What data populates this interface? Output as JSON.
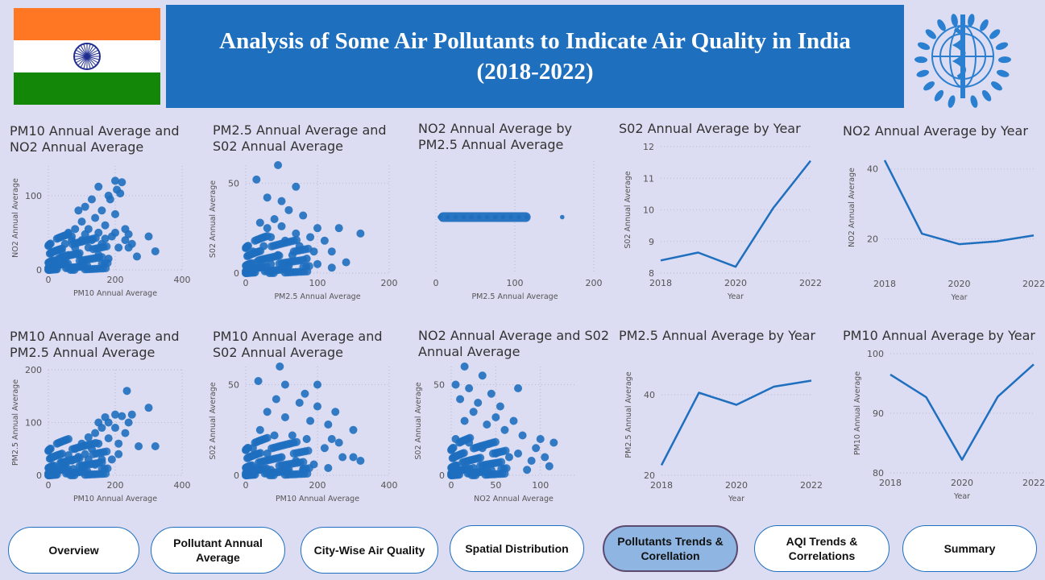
{
  "header": {
    "title_line1": "Analysis of Some Air Pollutants to Indicate Air Quality in India",
    "title_line2": "(2018-2022)",
    "flag_colors": [
      "#ff7722",
      "#ffffff",
      "#138808",
      "#1f2e8f"
    ]
  },
  "colors": {
    "accent": "#1f6fbf",
    "background": "#dcdcf2",
    "active_button": "#8fb6e3"
  },
  "charts": [
    {
      "id": "c1",
      "title_lines": [
        "PM10 Annual Average and",
        "NO2 Annual Average"
      ],
      "xlabel": "PM10 Annual Average",
      "ylabel": "NO2 Annual Average"
    },
    {
      "id": "c2",
      "title_lines": [
        "PM2.5 Annual Average and",
        "S02 Annual Average"
      ],
      "xlabel": "PM2.5 Annual Average",
      "ylabel": "S02 Annual Average"
    },
    {
      "id": "c3",
      "title_lines": [
        "NO2 Annual Average by",
        "PM2.5 Annual Average"
      ],
      "xlabel": "PM2.5 Annual Average",
      "ylabel": ""
    },
    {
      "id": "c4",
      "title_lines": [
        "S02 Annual Average by Year"
      ],
      "xlabel": "Year",
      "ylabel": "S02 Annual Average"
    },
    {
      "id": "c5",
      "title_lines": [
        "NO2 Annual Average by Year"
      ],
      "xlabel": "Year",
      "ylabel": "NO2 Annual Average"
    },
    {
      "id": "c6",
      "title_lines": [
        "PM10 Annual Average and",
        "PM2.5 Annual Average"
      ],
      "xlabel": "PM10 Annual Average",
      "ylabel": "PM2.5 Annual Average"
    },
    {
      "id": "c7",
      "title_lines": [
        "PM10 Annual Average and",
        "S02 Annual Average"
      ],
      "xlabel": "PM10 Annual Average",
      "ylabel": "S02 Annual Average"
    },
    {
      "id": "c8",
      "title_lines": [
        "NO2 Annual Average and S02",
        "Annual Average"
      ],
      "xlabel": "NO2 Annual Average",
      "ylabel": "S02 Annual Average"
    },
    {
      "id": "c9",
      "title_lines": [
        "PM2.5 Annual Average by Year"
      ],
      "xlabel": "Year",
      "ylabel": "PM2.5 Annual Average"
    },
    {
      "id": "c10",
      "title_lines": [
        "PM10 Annual Average by Year"
      ],
      "xlabel": "Year",
      "ylabel": "PM10 Annual Average"
    }
  ],
  "chart_data": [
    {
      "id": "c1",
      "type": "scatter",
      "xlabel": "PM10 Annual Average",
      "ylabel": "NO2 Annual Average",
      "xlim": [
        0,
        400
      ],
      "ylim": [
        0,
        140
      ],
      "xticks": [
        0,
        200,
        400
      ],
      "yticks": [
        0,
        100
      ],
      "points": [
        [
          300,
          45
        ],
        [
          320,
          25
        ],
        [
          240,
          30
        ],
        [
          265,
          18
        ],
        [
          200,
          120
        ],
        [
          220,
          118
        ],
        [
          205,
          108
        ],
        [
          150,
          112
        ],
        [
          180,
          100
        ],
        [
          215,
          103
        ],
        [
          185,
          95
        ],
        [
          130,
          95
        ],
        [
          110,
          85
        ],
        [
          90,
          80
        ],
        [
          160,
          80
        ],
        [
          200,
          75
        ],
        [
          140,
          70
        ],
        [
          100,
          65
        ],
        [
          170,
          60
        ],
        [
          120,
          55
        ],
        [
          80,
          55
        ],
        [
          60,
          50
        ],
        [
          150,
          50
        ],
        [
          200,
          50
        ],
        [
          230,
          55
        ],
        [
          240,
          48
        ],
        [
          190,
          45
        ],
        [
          130,
          40
        ],
        [
          100,
          40
        ],
        [
          70,
          40
        ],
        [
          50,
          35
        ],
        [
          160,
          35
        ],
        [
          210,
          30
        ],
        [
          120,
          30
        ],
        [
          80,
          30
        ],
        [
          40,
          25
        ],
        [
          60,
          20
        ],
        [
          90,
          20
        ],
        [
          150,
          20
        ],
        [
          30,
          15
        ],
        [
          20,
          10
        ],
        [
          50,
          10
        ],
        [
          100,
          10
        ],
        [
          180,
          15
        ],
        [
          70,
          45
        ],
        [
          110,
          48
        ],
        [
          170,
          42
        ],
        [
          230,
          40
        ],
        [
          250,
          35
        ]
      ]
    },
    {
      "id": "c2",
      "type": "scatter",
      "xlabel": "PM2.5 Annual Average",
      "ylabel": "S02 Annual Average",
      "xlim": [
        0,
        200
      ],
      "ylim": [
        0,
        60
      ],
      "xticks": [
        0,
        100,
        200
      ],
      "yticks": [
        0,
        50
      ],
      "points": [
        [
          45,
          60
        ],
        [
          15,
          52
        ],
        [
          70,
          48
        ],
        [
          30,
          42
        ],
        [
          50,
          40
        ],
        [
          60,
          35
        ],
        [
          40,
          30
        ],
        [
          80,
          32
        ],
        [
          20,
          28
        ],
        [
          100,
          25
        ],
        [
          130,
          25
        ],
        [
          160,
          22
        ],
        [
          90,
          20
        ],
        [
          110,
          18
        ],
        [
          35,
          20
        ],
        [
          55,
          18
        ],
        [
          25,
          15
        ],
        [
          75,
          15
        ],
        [
          120,
          12
        ],
        [
          10,
          12
        ],
        [
          45,
          10
        ],
        [
          65,
          10
        ],
        [
          85,
          8
        ],
        [
          15,
          6
        ],
        [
          35,
          5
        ],
        [
          60,
          4
        ],
        [
          100,
          5
        ],
        [
          5,
          3
        ],
        [
          120,
          3
        ],
        [
          140,
          6
        ],
        [
          30,
          25
        ],
        [
          70,
          22
        ],
        [
          50,
          26
        ],
        [
          95,
          12
        ]
      ]
    },
    {
      "id": "c3",
      "type": "scatter",
      "xlabel": "PM2.5 Annual Average",
      "ylabel": "",
      "xlim": [
        0,
        200
      ],
      "xticks": [
        0,
        100,
        200
      ],
      "points": [
        [
          5,
          30
        ],
        [
          15,
          30
        ],
        [
          25,
          30
        ],
        [
          35,
          30
        ],
        [
          45,
          30
        ],
        [
          55,
          30
        ],
        [
          65,
          30
        ],
        [
          75,
          30
        ],
        [
          85,
          30
        ],
        [
          95,
          30
        ],
        [
          105,
          30
        ],
        [
          115,
          30
        ],
        [
          160,
          30
        ]
      ]
    },
    {
      "id": "c4",
      "type": "line",
      "xlabel": "Year",
      "ylabel": "S02 Annual Average",
      "x": [
        2018,
        2019,
        2020,
        2021,
        2022
      ],
      "values": [
        8.4,
        8.65,
        8.2,
        10.05,
        11.55
      ],
      "ylim": [
        8,
        12
      ],
      "yticks": [
        8,
        9,
        10,
        11,
        12
      ],
      "xticks": [
        2018,
        2020,
        2022
      ]
    },
    {
      "id": "c5",
      "type": "line",
      "xlabel": "Year",
      "ylabel": "NO2 Annual Average",
      "x": [
        2018,
        2019,
        2020,
        2021,
        2022
      ],
      "values": [
        42.5,
        21.5,
        18.5,
        19.3,
        21
      ],
      "ylim": [
        10,
        48
      ],
      "yticks": [
        20,
        40
      ],
      "xticks": [
        2018,
        2020,
        2022
      ]
    },
    {
      "id": "c6",
      "type": "scatter",
      "xlabel": "PM10 Annual Average",
      "ylabel": "PM2.5 Annual Average",
      "xlim": [
        0,
        400
      ],
      "ylim": [
        0,
        200
      ],
      "xticks": [
        0,
        200,
        400
      ],
      "yticks": [
        0,
        100,
        200
      ],
      "points": [
        [
          235,
          160
        ],
        [
          300,
          128
        ],
        [
          320,
          55
        ],
        [
          270,
          55
        ],
        [
          200,
          115
        ],
        [
          220,
          112
        ],
        [
          180,
          100
        ],
        [
          160,
          90
        ],
        [
          140,
          80
        ],
        [
          120,
          72
        ],
        [
          100,
          60
        ],
        [
          80,
          50
        ],
        [
          60,
          38
        ],
        [
          40,
          25
        ],
        [
          30,
          15
        ],
        [
          20,
          10
        ],
        [
          200,
          90
        ],
        [
          230,
          80
        ],
        [
          180,
          70
        ],
        [
          150,
          60
        ],
        [
          130,
          50
        ],
        [
          110,
          40
        ],
        [
          90,
          35
        ],
        [
          70,
          28
        ],
        [
          50,
          20
        ],
        [
          190,
          30
        ],
        [
          210,
          40
        ],
        [
          160,
          30
        ],
        [
          140,
          20
        ],
        [
          100,
          15
        ],
        [
          240,
          100
        ],
        [
          250,
          115
        ],
        [
          170,
          110
        ],
        [
          150,
          100
        ],
        [
          210,
          60
        ],
        [
          75,
          12
        ],
        [
          120,
          30
        ]
      ]
    },
    {
      "id": "c7",
      "type": "scatter",
      "xlabel": "PM10 Annual Average",
      "ylabel": "S02 Annual Average",
      "xlim": [
        0,
        400
      ],
      "ylim": [
        0,
        60
      ],
      "xticks": [
        0,
        200,
        400
      ],
      "yticks": [
        0,
        50
      ],
      "points": [
        [
          95,
          60
        ],
        [
          35,
          52
        ],
        [
          110,
          50
        ],
        [
          200,
          50
        ],
        [
          165,
          45
        ],
        [
          85,
          42
        ],
        [
          150,
          40
        ],
        [
          250,
          35
        ],
        [
          200,
          38
        ],
        [
          60,
          35
        ],
        [
          110,
          32
        ],
        [
          180,
          30
        ],
        [
          230,
          28
        ],
        [
          300,
          25
        ],
        [
          40,
          25
        ],
        [
          80,
          22
        ],
        [
          130,
          22
        ],
        [
          170,
          20
        ],
        [
          260,
          18
        ],
        [
          220,
          15
        ],
        [
          300,
          10
        ],
        [
          320,
          8
        ],
        [
          20,
          15
        ],
        [
          60,
          12
        ],
        [
          100,
          10
        ],
        [
          140,
          8
        ],
        [
          190,
          6
        ],
        [
          230,
          4
        ],
        [
          30,
          4
        ],
        [
          70,
          3
        ],
        [
          120,
          3
        ],
        [
          160,
          3
        ],
        [
          240,
          20
        ],
        [
          270,
          10
        ]
      ]
    },
    {
      "id": "c8",
      "type": "scatter",
      "xlabel": "NO2 Annual Average",
      "ylabel": "S02 Annual Average",
      "xlim": [
        0,
        140
      ],
      "ylim": [
        0,
        60
      ],
      "xticks": [
        0,
        50,
        100
      ],
      "yticks": [
        0,
        50
      ],
      "points": [
        [
          15,
          60
        ],
        [
          35,
          55
        ],
        [
          5,
          50
        ],
        [
          20,
          48
        ],
        [
          45,
          45
        ],
        [
          75,
          48
        ],
        [
          10,
          42
        ],
        [
          30,
          40
        ],
        [
          55,
          38
        ],
        [
          25,
          35
        ],
        [
          50,
          32
        ],
        [
          70,
          30
        ],
        [
          15,
          30
        ],
        [
          40,
          28
        ],
        [
          60,
          25
        ],
        [
          80,
          22
        ],
        [
          100,
          20
        ],
        [
          115,
          18
        ],
        [
          5,
          20
        ],
        [
          20,
          18
        ],
        [
          35,
          15
        ],
        [
          50,
          12
        ],
        [
          65,
          10
        ],
        [
          90,
          8
        ],
        [
          105,
          10
        ],
        [
          110,
          5
        ],
        [
          85,
          3
        ],
        [
          5,
          5
        ],
        [
          25,
          4
        ],
        [
          45,
          3
        ],
        [
          95,
          15
        ],
        [
          75,
          12
        ]
      ]
    },
    {
      "id": "c9",
      "type": "line",
      "xlabel": "Year",
      "ylabel": "PM2.5 Annual Average",
      "x": [
        2018,
        2019,
        2020,
        2021,
        2022
      ],
      "values": [
        22.5,
        40.5,
        37.5,
        42,
        43.5
      ],
      "ylim": [
        20,
        50
      ],
      "yticks": [
        20,
        40
      ],
      "xticks": [
        2018,
        2020,
        2022
      ]
    },
    {
      "id": "c10",
      "type": "line",
      "xlabel": "Year",
      "ylabel": "PM10 Annual Average",
      "x": [
        2018,
        2019,
        2020,
        2021,
        2022
      ],
      "values": [
        96.5,
        92.7,
        82.2,
        92.8,
        98.2
      ],
      "ylim": [
        80,
        100
      ],
      "yticks": [
        80,
        90,
        100
      ],
      "xticks": [
        2018,
        2020,
        2022
      ]
    }
  ],
  "nav": {
    "buttons": [
      {
        "label": "Overview",
        "active": false
      },
      {
        "label": "Pollutant Annual\nAverage",
        "active": false
      },
      {
        "label": "City-Wise Air Quality",
        "active": false
      },
      {
        "label": "Spatial Distribution",
        "active": false
      },
      {
        "label": "Pollutants Trends &\nCorellation",
        "active": true
      },
      {
        "label": "AQI Trends &\nCorrelations",
        "active": false
      },
      {
        "label": "Summary",
        "active": false
      }
    ]
  }
}
